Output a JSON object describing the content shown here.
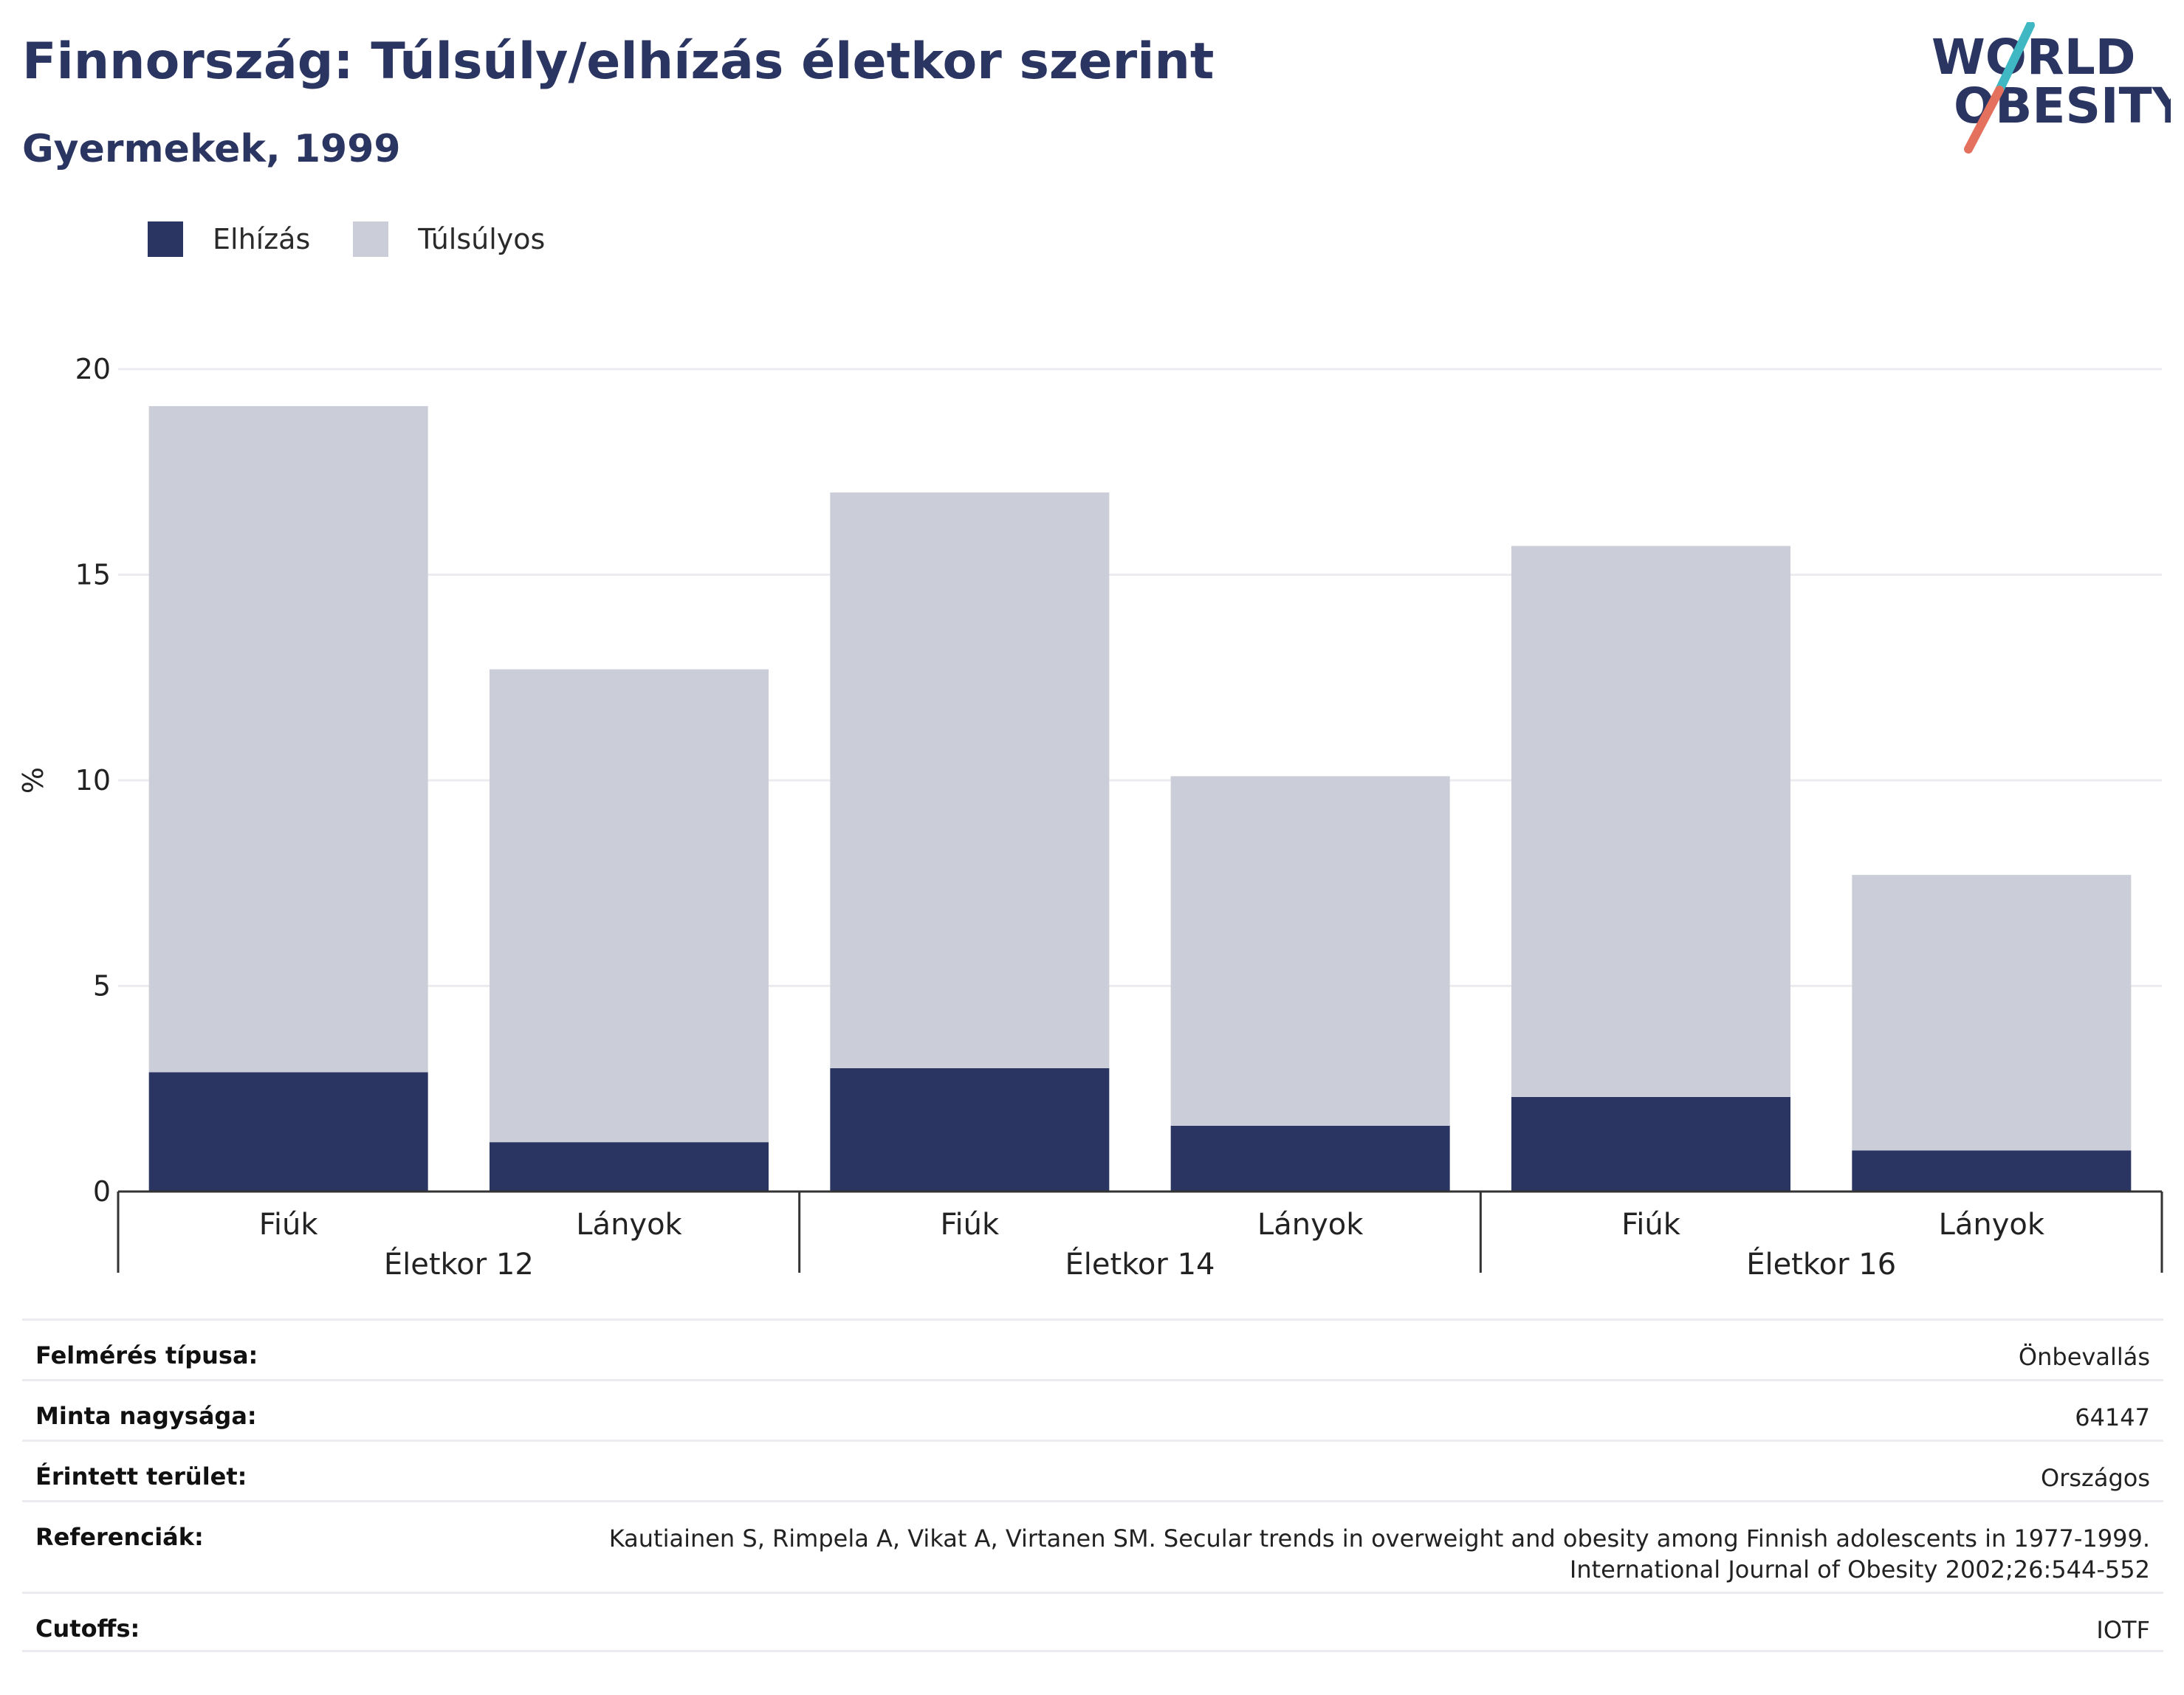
{
  "header": {
    "title": "Finnország: Túlsúly/elhízás életkor szerint",
    "subtitle": "Gyermekek, 1999"
  },
  "logo": {
    "line1": "WORLD",
    "line2": "OBESITY",
    "accent_teal": "#3fb8c4",
    "accent_coral": "#e4705e"
  },
  "colors": {
    "obesity": "#2b3561",
    "overweight": "#cbcdd8",
    "grid": "#ececf0",
    "axis": "#333333"
  },
  "chart_data": {
    "type": "bar",
    "stacked": true,
    "ylabel": "%",
    "ylim": [
      0,
      20
    ],
    "yticks": [
      0,
      5,
      10,
      15,
      20
    ],
    "grid": true,
    "legend_position": "top-left",
    "groups": [
      "Életkor 12",
      "Életkor 14",
      "Életkor 16"
    ],
    "categories": [
      "Fiúk",
      "Lányok",
      "Fiúk",
      "Lányok",
      "Fiúk",
      "Lányok"
    ],
    "series": [
      {
        "name": "Elhízás",
        "values": [
          2.9,
          1.2,
          3.0,
          1.6,
          2.3,
          1.0
        ]
      },
      {
        "name": "Túlsúlyos",
        "values": [
          16.2,
          11.5,
          14.0,
          8.5,
          13.4,
          6.7
        ]
      }
    ]
  },
  "meta": {
    "rows": [
      {
        "label": "Felmérés típusa:",
        "value": "Önbevallás"
      },
      {
        "label": "Minta nagysága:",
        "value": "64147"
      },
      {
        "label": "Érintett terület:",
        "value": "Országos"
      },
      {
        "label": "Referenciák:",
        "value": "Kautiainen S, Rimpela A, Vikat A, Virtanen SM. Secular trends in overweight and obesity among Finnish adolescents in 1977-1999.",
        "value2": "International Journal of Obesity 2002;26:544-552"
      },
      {
        "label": "Cutoffs:",
        "value": "IOTF"
      }
    ]
  }
}
